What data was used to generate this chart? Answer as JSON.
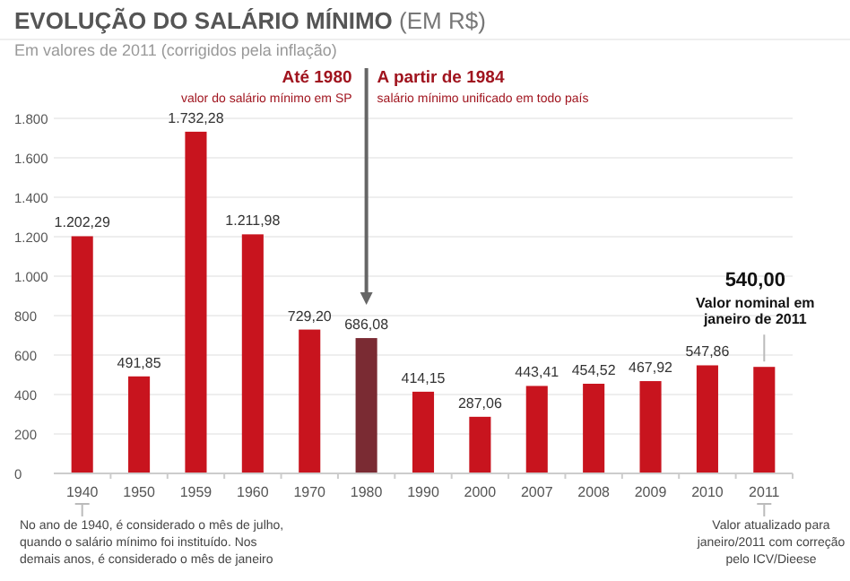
{
  "chart_data": {
    "type": "bar",
    "title": "EVOLUÇÃO DO SALÁRIO MÍNIMO",
    "ylabel": "(EM R$)",
    "subtitle": "Em valores de 2011 (corrigidos pela inflação)",
    "categories": [
      "1940",
      "1950",
      "1959",
      "1960",
      "1970",
      "1980",
      "1990",
      "2000",
      "2007",
      "2008",
      "2009",
      "2010",
      "2011"
    ],
    "values": [
      1202.29,
      491.85,
      1732.28,
      1211.98,
      729.2,
      686.08,
      414.15,
      287.06,
      443.41,
      454.52,
      467.92,
      547.86,
      540
    ],
    "value_labels": [
      "1.202,29",
      "491,85",
      "1.732,28",
      "1.211,98",
      "729,20",
      "686,08",
      "414,15",
      "287,06",
      "443,41",
      "454,52",
      "467,92",
      "547,86",
      null
    ],
    "colors": [
      "#c8141e",
      "#c8141e",
      "#c8141e",
      "#c8141e",
      "#c8141e",
      "#7a2b33",
      "#c8141e",
      "#c8141e",
      "#c8141e",
      "#c8141e",
      "#c8141e",
      "#c8141e",
      "#c8141e"
    ],
    "ylim": [
      0,
      1800
    ],
    "yticks": [
      0,
      200,
      400,
      600,
      800,
      {
        "value": 1000,
        "label": "1.000"
      },
      {
        "value": 1200,
        "label": "1.200"
      },
      {
        "value": 1400,
        "label": "1.400"
      },
      {
        "value": 1600,
        "label": "1.600"
      },
      {
        "value": 1800,
        "label": "1.800"
      }
    ],
    "grid": "y",
    "annotations": [
      "Até 1980",
      "valor do salário mínimo em SP",
      "A partir de 1984",
      "salário mínimo unificado em todo país",
      {
        "text": "540,00\nValor nominal em\njaneiro de 2011",
        "x": "2011",
        "y": 540
      },
      "No ano de 1940, é considerado o mês de julho,\nquando o salário mínimo foi instituído. Nos\ndemais anos, é considerado o mês de janeiro",
      "Valor atualizado para\njaneiro/2011 com correção\npelo ICV/Dieese"
    ]
  }
}
